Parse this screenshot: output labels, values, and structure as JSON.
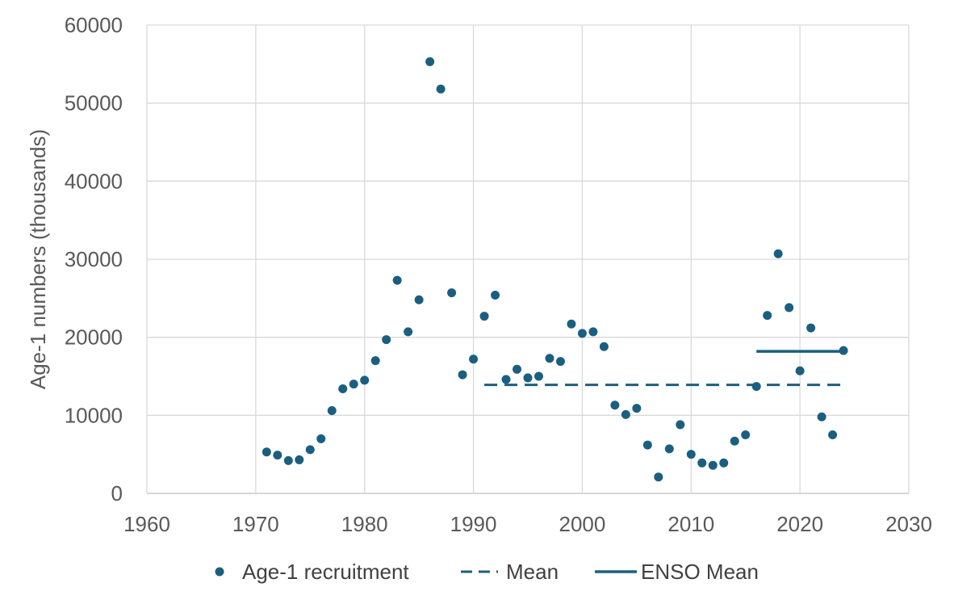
{
  "chart_data": {
    "type": "scatter",
    "title": "",
    "xlabel": "",
    "ylabel": "Age-1 numbers (thousands)",
    "xlim": [
      1960,
      2030
    ],
    "ylim": [
      0,
      60000
    ],
    "x_ticks": [
      "1960",
      "1970",
      "1980",
      "1990",
      "2000",
      "2010",
      "2020",
      "2030"
    ],
    "y_ticks": [
      "0",
      "10000",
      "20000",
      "30000",
      "40000",
      "50000",
      "60000"
    ],
    "grid": true,
    "legend_position": "bottom",
    "color": "#1b5f80",
    "series": [
      {
        "name": "Age-1 recruitment",
        "kind": "points",
        "points": [
          [
            1971,
            5300
          ],
          [
            1972,
            4900
          ],
          [
            1973,
            4200
          ],
          [
            1974,
            4300
          ],
          [
            1975,
            5600
          ],
          [
            1976,
            7000
          ],
          [
            1977,
            10600
          ],
          [
            1978,
            13400
          ],
          [
            1979,
            14000
          ],
          [
            1980,
            14500
          ],
          [
            1981,
            17000
          ],
          [
            1982,
            19700
          ],
          [
            1983,
            27300
          ],
          [
            1984,
            20700
          ],
          [
            1985,
            24800
          ],
          [
            1986,
            55300
          ],
          [
            1987,
            51800
          ],
          [
            1988,
            25700
          ],
          [
            1989,
            15200
          ],
          [
            1990,
            17200
          ],
          [
            1991,
            22700
          ],
          [
            1992,
            25400
          ],
          [
            1993,
            14600
          ],
          [
            1994,
            15900
          ],
          [
            1995,
            14800
          ],
          [
            1996,
            15000
          ],
          [
            1997,
            17300
          ],
          [
            1998,
            16900
          ],
          [
            1999,
            21700
          ],
          [
            2000,
            20500
          ],
          [
            2001,
            20700
          ],
          [
            2002,
            18800
          ],
          [
            2003,
            11300
          ],
          [
            2004,
            10100
          ],
          [
            2005,
            10900
          ],
          [
            2006,
            6200
          ],
          [
            2007,
            2100
          ],
          [
            2008,
            5700
          ],
          [
            2009,
            8800
          ],
          [
            2010,
            5000
          ],
          [
            2011,
            3900
          ],
          [
            2012,
            3600
          ],
          [
            2013,
            3900
          ],
          [
            2014,
            6700
          ],
          [
            2015,
            7500
          ],
          [
            2016,
            13700
          ],
          [
            2017,
            22800
          ],
          [
            2018,
            30700
          ],
          [
            2019,
            23800
          ],
          [
            2020,
            15700
          ],
          [
            2021,
            21200
          ],
          [
            2022,
            9800
          ],
          [
            2023,
            7500
          ],
          [
            2024,
            18300
          ]
        ]
      },
      {
        "name": "Mean",
        "kind": "dashed-line",
        "x_range": [
          1991,
          2024
        ],
        "value": 13900
      },
      {
        "name": "ENSO Mean",
        "kind": "solid-line",
        "x_range": [
          2016,
          2024
        ],
        "value": 18200
      }
    ]
  }
}
